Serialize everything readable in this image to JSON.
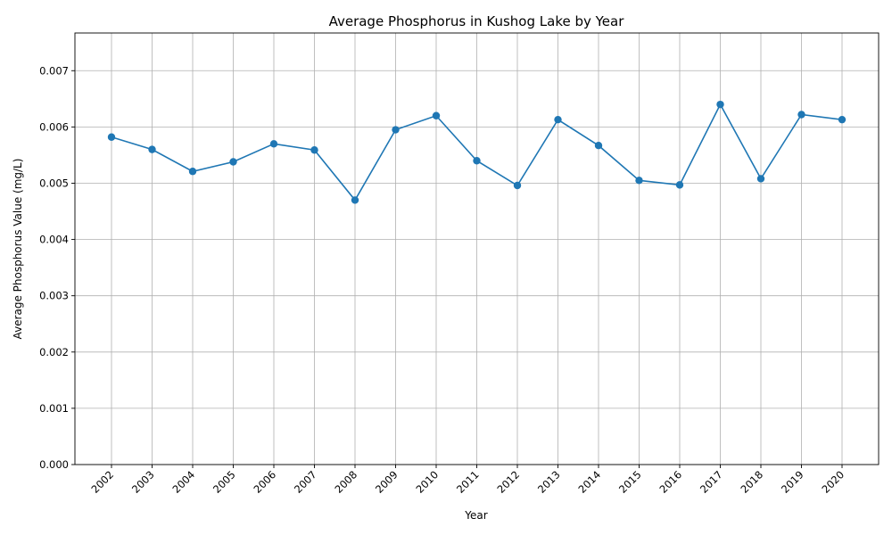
{
  "chart_data": {
    "type": "line",
    "title": "Average Phosphorus in Kushog Lake by Year",
    "xlabel": "Year",
    "ylabel": "Average Phosphorus Value (mg/L)",
    "categories": [
      "2002",
      "2003",
      "2004",
      "2005",
      "2006",
      "2007",
      "2008",
      "2009",
      "2010",
      "2011",
      "2012",
      "2013",
      "2014",
      "2015",
      "2016",
      "2017",
      "2018",
      "2019",
      "2020"
    ],
    "series": [
      {
        "values": [
          0.00582,
          0.0056,
          0.00521,
          0.00538,
          0.0057,
          0.00559,
          0.0047,
          0.00595,
          0.0062,
          0.0054,
          0.00496,
          0.00613,
          0.00567,
          0.00505,
          0.00497,
          0.0064,
          0.00508,
          0.00622,
          0.00613
        ],
        "color": "#1f77b4"
      }
    ],
    "ylim": [
      0,
      0.00767
    ],
    "yticks": [
      "0.000",
      "0.001",
      "0.002",
      "0.003",
      "0.004",
      "0.005",
      "0.006",
      "0.007"
    ],
    "grid": true,
    "markers": "circle"
  }
}
